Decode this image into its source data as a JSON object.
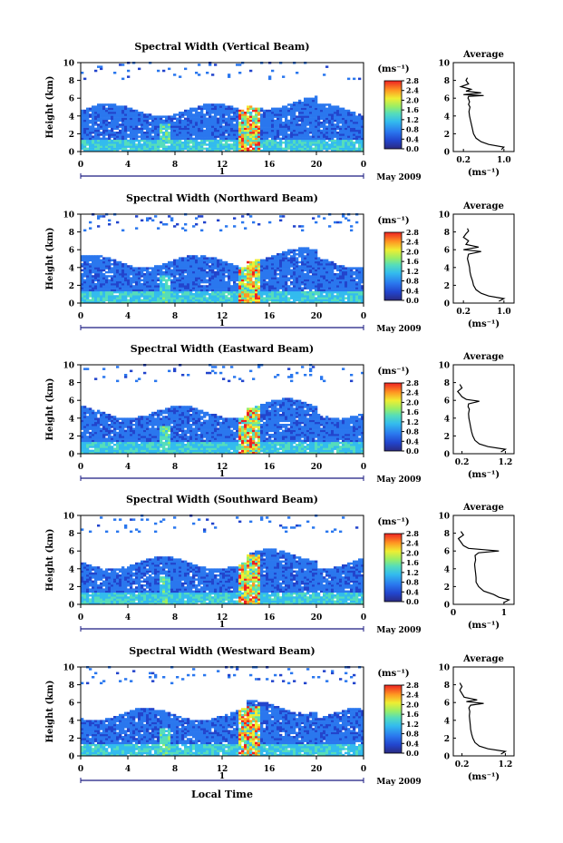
{
  "figure": {
    "xlabel": "Local Time",
    "month_label": "May 2009",
    "day_label": "1",
    "ylabel": "Height (km)",
    "unit_label": "(ms⁻¹)",
    "avg_title": "Average",
    "avg_xlabel": "(ms⁻¹)"
  },
  "chart_data": [
    {
      "type": "heatmap",
      "title": "Spectral Width (Vertical Beam)",
      "xticks": [
        "0",
        "4",
        "8",
        "12",
        "16",
        "20",
        "0"
      ],
      "xlim": [
        0,
        24
      ],
      "yticks": [
        "0",
        "2",
        "4",
        "6",
        "8",
        "10"
      ],
      "ylim": [
        0,
        10
      ],
      "colorbar_ticks": [
        "2.8",
        "2.4",
        "2.0",
        "1.6",
        "1.2",
        "0.8",
        "0.4",
        "0.0"
      ],
      "colorbar_range": [
        0,
        2.8
      ],
      "avg_profile": {
        "type": "line",
        "title": "Average",
        "xticks": [
          "0.2",
          "1.0"
        ],
        "xlim": [
          0,
          1.2
        ],
        "ylim": [
          0,
          10
        ],
        "yticks": [
          "0",
          "2",
          "4",
          "6",
          "8",
          "10"
        ],
        "x": [
          0.95,
          1.0,
          0.7,
          0.55,
          0.45,
          0.4,
          0.38,
          0.36,
          0.34,
          0.32,
          0.31,
          0.33,
          0.3,
          0.32,
          0.3,
          0.29,
          0.3,
          0.6,
          0.2,
          0.55,
          0.25,
          0.35,
          0.15,
          0.3,
          0.25,
          0.28
        ],
        "y": [
          0.2,
          0.5,
          0.8,
          1.1,
          1.5,
          2.0,
          2.5,
          3.0,
          3.5,
          4.0,
          4.5,
          5.0,
          5.3,
          5.6,
          5.9,
          6.0,
          6.2,
          6.3,
          6.4,
          6.6,
          6.8,
          7.0,
          7.3,
          7.6,
          8.0,
          8.3
        ]
      }
    },
    {
      "type": "heatmap",
      "title": "Spectral Width (Northward Beam)",
      "xticks": [
        "0",
        "4",
        "8",
        "12",
        "16",
        "20",
        "0"
      ],
      "xlim": [
        0,
        24
      ],
      "yticks": [
        "0",
        "2",
        "4",
        "6",
        "8",
        "10"
      ],
      "ylim": [
        0,
        10
      ],
      "colorbar_ticks": [
        "2.8",
        "2.4",
        "2.0",
        "1.6",
        "1.2",
        "0.8",
        "0.4",
        "0.0"
      ],
      "colorbar_range": [
        0,
        2.8
      ],
      "avg_profile": {
        "type": "line",
        "title": "Average",
        "xticks": [
          "0.2",
          "1.0"
        ],
        "xlim": [
          0,
          1.2
        ],
        "ylim": [
          0,
          10
        ],
        "yticks": [
          "0",
          "2",
          "4",
          "6",
          "8",
          "10"
        ],
        "x": [
          0.9,
          1.0,
          0.7,
          0.55,
          0.45,
          0.4,
          0.38,
          0.35,
          0.33,
          0.32,
          0.3,
          0.28,
          0.3,
          0.55,
          0.2,
          0.5,
          0.25,
          0.3,
          0.2,
          0.25,
          0.3,
          0.28
        ],
        "y": [
          0.2,
          0.5,
          0.8,
          1.1,
          1.5,
          2.0,
          2.5,
          3.0,
          3.5,
          4.0,
          4.5,
          5.0,
          5.5,
          5.8,
          6.0,
          6.3,
          6.6,
          7.0,
          7.4,
          7.8,
          8.1,
          8.4
        ]
      }
    },
    {
      "type": "heatmap",
      "title": "Spectral Width (Eastward Beam)",
      "xticks": [
        "0",
        "4",
        "8",
        "12",
        "16",
        "20",
        "0"
      ],
      "xlim": [
        0,
        24
      ],
      "yticks": [
        "0",
        "2",
        "4",
        "6",
        "8",
        "10"
      ],
      "ylim": [
        0,
        10
      ],
      "colorbar_ticks": [
        "2.8",
        "2.4",
        "2.0",
        "1.6",
        "1.2",
        "0.8",
        "0.4",
        "0.0"
      ],
      "colorbar_range": [
        0,
        2.8
      ],
      "avg_profile": {
        "type": "line",
        "title": "Average",
        "xticks": [
          "0.2",
          "1.2"
        ],
        "xlim": [
          0,
          1.4
        ],
        "ylim": [
          0,
          10
        ],
        "yticks": [
          "0",
          "2",
          "4",
          "6",
          "8",
          "10"
        ],
        "x": [
          1.1,
          1.2,
          0.8,
          0.6,
          0.5,
          0.45,
          0.42,
          0.4,
          0.38,
          0.36,
          0.35,
          0.37,
          0.34,
          0.35,
          0.6,
          0.3,
          0.2,
          0.15,
          0.1,
          0.2,
          0.15
        ],
        "y": [
          0.2,
          0.5,
          0.8,
          1.1,
          1.5,
          2.0,
          2.5,
          3.0,
          3.5,
          4.0,
          4.5,
          5.0,
          5.3,
          5.6,
          5.9,
          6.1,
          6.4,
          6.7,
          7.0,
          7.4,
          7.8
        ]
      }
    },
    {
      "type": "heatmap",
      "title": "Spectral Width (Southward Beam)",
      "xticks": [
        "0",
        "4",
        "8",
        "12",
        "16",
        "20",
        "0"
      ],
      "xlim": [
        0,
        24
      ],
      "yticks": [
        "0",
        "2",
        "4",
        "6",
        "8",
        "10"
      ],
      "ylim": [
        0,
        10
      ],
      "colorbar_ticks": [
        "2.8",
        "2.4",
        "2.0",
        "1.6",
        "1.2",
        "0.8",
        "0.4",
        "0.0"
      ],
      "colorbar_range": [
        0,
        2.8
      ],
      "avg_profile": {
        "type": "line",
        "title": "Average",
        "xticks": [
          "0",
          "1"
        ],
        "xlim": [
          0,
          1.2
        ],
        "ylim": [
          0,
          10
        ],
        "yticks": [
          "0",
          "2",
          "4",
          "6",
          "8",
          "10"
        ],
        "x": [
          1.0,
          1.1,
          0.9,
          0.8,
          0.6,
          0.5,
          0.45,
          0.45,
          0.44,
          0.43,
          0.42,
          0.44,
          0.43,
          0.5,
          0.9,
          0.3,
          0.2,
          0.15,
          0.1,
          0.2,
          0.15
        ],
        "y": [
          0.2,
          0.5,
          0.8,
          1.1,
          1.5,
          2.0,
          2.5,
          3.0,
          3.5,
          4.0,
          4.5,
          5.0,
          5.5,
          5.8,
          6.0,
          6.3,
          6.6,
          7.0,
          7.4,
          7.8,
          8.2
        ]
      }
    },
    {
      "type": "heatmap",
      "title": "Spectral Width (Westward Beam)",
      "xticks": [
        "0",
        "4",
        "8",
        "12",
        "16",
        "20",
        "0"
      ],
      "xlim": [
        0,
        24
      ],
      "yticks": [
        "0",
        "2",
        "4",
        "6",
        "8",
        "10"
      ],
      "ylim": [
        0,
        10
      ],
      "colorbar_ticks": [
        "2.8",
        "2.4",
        "2.0",
        "1.6",
        "1.2",
        "0.8",
        "0.4",
        "0.0"
      ],
      "colorbar_range": [
        0,
        2.8
      ],
      "avg_profile": {
        "type": "line",
        "title": "Average",
        "xticks": [
          "0.2",
          "1.2"
        ],
        "xlim": [
          0,
          1.4
        ],
        "ylim": [
          0,
          10
        ],
        "yticks": [
          "0",
          "2",
          "4",
          "6",
          "8",
          "10"
        ],
        "x": [
          1.1,
          1.2,
          0.8,
          0.6,
          0.5,
          0.45,
          0.42,
          0.4,
          0.39,
          0.38,
          0.37,
          0.38,
          0.36,
          0.4,
          0.7,
          0.3,
          0.55,
          0.25,
          0.2,
          0.15,
          0.2,
          0.15
        ],
        "y": [
          0.2,
          0.5,
          0.8,
          1.1,
          1.5,
          2.0,
          2.5,
          3.0,
          3.5,
          4.0,
          4.5,
          5.0,
          5.4,
          5.7,
          5.9,
          6.1,
          6.3,
          6.6,
          7.0,
          7.4,
          7.8,
          8.2
        ]
      }
    }
  ]
}
